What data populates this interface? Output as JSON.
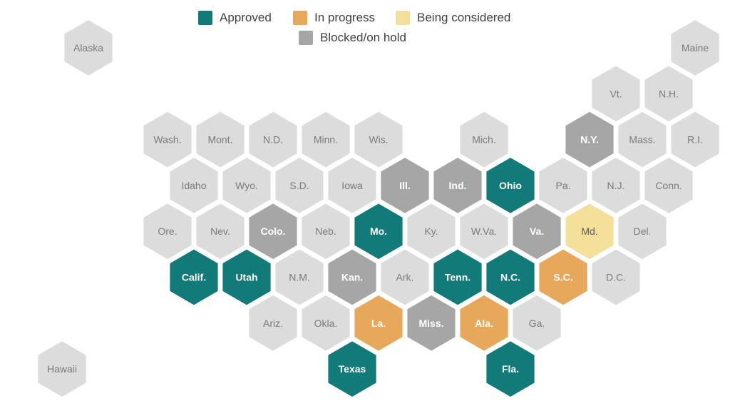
{
  "legend": [
    {
      "key": "approved",
      "label": "Approved",
      "color": "#127a78"
    },
    {
      "key": "in_progress",
      "label": "In progress",
      "color": "#e8a85c"
    },
    {
      "key": "considered",
      "label": "Being considered",
      "color": "#f5e09b"
    },
    {
      "key": "blocked",
      "label": "Blocked/on hold",
      "color": "#a6a6a6"
    }
  ],
  "default_color": "#dcdcdc",
  "states": [
    {
      "label": "Alaska",
      "status": "none",
      "row": 0,
      "col": 1
    },
    {
      "label": "Maine",
      "status": "none",
      "row": 0,
      "col": 12.5
    },
    {
      "label": "Vt.",
      "status": "none",
      "row": 1,
      "col": 11
    },
    {
      "label": "N.H.",
      "status": "none",
      "row": 1,
      "col": 12
    },
    {
      "label": "Wash.",
      "status": "none",
      "row": 2,
      "col": 2.5
    },
    {
      "label": "Mont.",
      "status": "none",
      "row": 2,
      "col": 3.5
    },
    {
      "label": "N.D.",
      "status": "none",
      "row": 2,
      "col": 4.5
    },
    {
      "label": "Minn.",
      "status": "none",
      "row": 2,
      "col": 5.5
    },
    {
      "label": "Wis.",
      "status": "none",
      "row": 2,
      "col": 6.5
    },
    {
      "label": "Mich.",
      "status": "none",
      "row": 2,
      "col": 8.5
    },
    {
      "label": "N.Y.",
      "status": "blocked",
      "row": 2,
      "col": 10.5
    },
    {
      "label": "Mass.",
      "status": "none",
      "row": 2,
      "col": 11.5
    },
    {
      "label": "R.I.",
      "status": "none",
      "row": 2,
      "col": 12.5
    },
    {
      "label": "Idaho",
      "status": "none",
      "row": 3,
      "col": 3
    },
    {
      "label": "Wyo.",
      "status": "none",
      "row": 3,
      "col": 4
    },
    {
      "label": "S.D.",
      "status": "none",
      "row": 3,
      "col": 5
    },
    {
      "label": "Iowa",
      "status": "none",
      "row": 3,
      "col": 6
    },
    {
      "label": "Ill.",
      "status": "blocked",
      "row": 3,
      "col": 7
    },
    {
      "label": "Ind.",
      "status": "blocked",
      "row": 3,
      "col": 8
    },
    {
      "label": "Ohio",
      "status": "approved",
      "row": 3,
      "col": 9
    },
    {
      "label": "Pa.",
      "status": "none",
      "row": 3,
      "col": 10
    },
    {
      "label": "N.J.",
      "status": "none",
      "row": 3,
      "col": 11
    },
    {
      "label": "Conn.",
      "status": "none",
      "row": 3,
      "col": 12
    },
    {
      "label": "Ore.",
      "status": "none",
      "row": 4,
      "col": 2.5
    },
    {
      "label": "Nev.",
      "status": "none",
      "row": 4,
      "col": 3.5
    },
    {
      "label": "Colo.",
      "status": "blocked",
      "row": 4,
      "col": 4.5
    },
    {
      "label": "Neb.",
      "status": "none",
      "row": 4,
      "col": 5.5
    },
    {
      "label": "Mo.",
      "status": "approved",
      "row": 4,
      "col": 6.5
    },
    {
      "label": "Ky.",
      "status": "none",
      "row": 4,
      "col": 7.5
    },
    {
      "label": "W.Va.",
      "status": "none",
      "row": 4,
      "col": 8.5
    },
    {
      "label": "Va.",
      "status": "blocked",
      "row": 4,
      "col": 9.5
    },
    {
      "label": "Md.",
      "status": "considered",
      "row": 4,
      "col": 10.5
    },
    {
      "label": "Del.",
      "status": "none",
      "row": 4,
      "col": 11.5
    },
    {
      "label": "Calif.",
      "status": "approved",
      "row": 5,
      "col": 3
    },
    {
      "label": "Utah",
      "status": "approved",
      "row": 5,
      "col": 4
    },
    {
      "label": "N.M.",
      "status": "none",
      "row": 5,
      "col": 5
    },
    {
      "label": "Kan.",
      "status": "blocked",
      "row": 5,
      "col": 6
    },
    {
      "label": "Ark.",
      "status": "none",
      "row": 5,
      "col": 7
    },
    {
      "label": "Tenn.",
      "status": "approved",
      "row": 5,
      "col": 8
    },
    {
      "label": "N.C.",
      "status": "approved",
      "row": 5,
      "col": 9
    },
    {
      "label": "S.C.",
      "status": "in_progress",
      "row": 5,
      "col": 10
    },
    {
      "label": "D.C.",
      "status": "none",
      "row": 5,
      "col": 11
    },
    {
      "label": "Ariz.",
      "status": "none",
      "row": 6,
      "col": 4.5
    },
    {
      "label": "Okla.",
      "status": "none",
      "row": 6,
      "col": 5.5
    },
    {
      "label": "La.",
      "status": "in_progress",
      "row": 6,
      "col": 6.5
    },
    {
      "label": "Miss.",
      "status": "blocked",
      "row": 6,
      "col": 7.5
    },
    {
      "label": "Ala.",
      "status": "in_progress",
      "row": 6,
      "col": 8.5
    },
    {
      "label": "Ga.",
      "status": "none",
      "row": 6,
      "col": 9.5
    },
    {
      "label": "Hawaii",
      "status": "none",
      "row": 7,
      "col": 0.5
    },
    {
      "label": "Texas",
      "status": "approved",
      "row": 7,
      "col": 6
    },
    {
      "label": "Fla.",
      "status": "approved",
      "row": 7,
      "col": 9
    }
  ]
}
